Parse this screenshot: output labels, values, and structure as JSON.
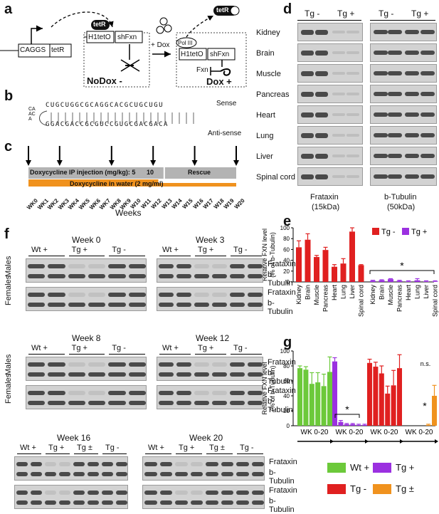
{
  "panels": {
    "a": {
      "letter": "a",
      "promoter": "CAGGS",
      "gene": "tetR",
      "repressor": "tetR",
      "operator": "H1tetO",
      "hairpin": "shFxn",
      "dox_add": "+ Dox",
      "polymerase": "Pol III",
      "released": "tetR",
      "target": "Fxn",
      "nodox_label": "NoDox -",
      "dox_label": "Dox +"
    },
    "b": {
      "letter": "b",
      "sense": "Sense",
      "antisense": "Anti-sense",
      "hairpin_top": "CUGCUGGCGCAGGCACGCUGCUGU",
      "hairpin_bottom": "GGACGACCGCGUCCGUGCGACGACA",
      "loop": "CAACA"
    },
    "c": {
      "letter": "c",
      "ip_label": "Doxycycline IP injection (mg/kg): 5",
      "ip_value2": "10",
      "rescue": "Rescue",
      "water_label": "Doxycycline in water (2 mg/ml)",
      "weeks": [
        "WK0",
        "WK1",
        "WK2",
        "WK3",
        "WK4",
        "WK5",
        "WK6",
        "WK7",
        "WK8",
        "WK9",
        "W10",
        "W11",
        "W12",
        "W13",
        "W14",
        "W15",
        "W16",
        "W17",
        "W18",
        "W19",
        "W20"
      ],
      "xlabel": "Weeks",
      "colors": {
        "ip": "#b3b3b3",
        "water": "#f0921e"
      }
    },
    "d": {
      "letter": "d",
      "groups": [
        "Tg -",
        "Tg +",
        "Tg -",
        "Tg +"
      ],
      "tissues": [
        "Kidney",
        "Brain",
        "Muscle",
        "Pancreas",
        "Heart",
        "Lung",
        "Liver",
        "Spinal cord"
      ],
      "protein1": "Frataxin",
      "size1": "(15kDa)",
      "protein2": "b-Tubulin",
      "size2": "(50kDa)"
    },
    "e": {
      "letter": "e",
      "legend": [
        "Tg -",
        "Tg +"
      ],
      "star": "*"
    },
    "f": {
      "letter": "f",
      "blocks": [
        {
          "week": "Week 0",
          "groups": [
            "Wt +",
            "Tg +",
            "Tg -"
          ]
        },
        {
          "week": "Week 3",
          "groups": [
            "Wt +",
            "Tg +",
            "Tg -"
          ]
        },
        {
          "week": "Week 8",
          "groups": [
            "Wt +",
            "Tg +",
            "Tg -"
          ]
        },
        {
          "week": "Week 12",
          "groups": [
            "Wt +",
            "Tg +",
            "Tg -"
          ]
        },
        {
          "week": "Week 16",
          "groups": [
            "Wt +",
            "Tg +",
            "Tg ±",
            "Tg -"
          ]
        },
        {
          "week": "Week 20",
          "groups": [
            "Wt +",
            "Tg +",
            "Tg ±",
            "Tg -"
          ]
        }
      ],
      "males": "Males",
      "females": "Females",
      "frataxin": "Frataxin",
      "tubulin": "b-Tubulin"
    },
    "g": {
      "letter": "g",
      "group_label": "WK 0-20",
      "star": "*",
      "ns": "n.s.",
      "legend": [
        "Wt +",
        "Tg -",
        "Tg +",
        "Tg ±"
      ]
    }
  },
  "chart_data": [
    {
      "type": "bar",
      "panel": "e",
      "ylabel": "Relative FXN level (% of b-Tubulin)",
      "ylim": [
        0,
        100
      ],
      "yticks": [
        0,
        20,
        40,
        60,
        80,
        100
      ],
      "categories": [
        "Kidney",
        "Brain",
        "Muscle",
        "Pancreas",
        "Heart",
        "Lung",
        "Liver",
        "Spinal cord"
      ],
      "series": [
        {
          "name": "Tg -",
          "color": "#e02020",
          "values": [
            64,
            78,
            46,
            59,
            28,
            34,
            93,
            31
          ],
          "errors": [
            12,
            11,
            3,
            5,
            4,
            9,
            7,
            1
          ]
        },
        {
          "name": "Tg +",
          "color": "#9b30e0",
          "values": [
            2,
            3,
            5,
            2,
            1,
            3,
            1,
            1
          ],
          "errors": [
            1,
            1,
            1,
            1,
            1,
            3,
            1,
            1
          ]
        }
      ]
    },
    {
      "type": "bar",
      "panel": "g",
      "ylabel": "Relative FXN level (% of b-Tubulin)",
      "ylim": [
        0,
        100
      ],
      "yticks": [
        0,
        20,
        40,
        60,
        80,
        100
      ],
      "groups": [
        {
          "name": "Wt +",
          "color": "#6cc93a",
          "values": [
            77,
            75,
            56,
            58,
            53,
            72
          ],
          "errors": [
            3,
            4,
            15,
            13,
            16,
            20
          ]
        },
        {
          "name": "Tg +",
          "color": "#9b30e0",
          "values": [
            86,
            5,
            2,
            2,
            1,
            1
          ],
          "errors": [
            5,
            2,
            1,
            1,
            1,
            1
          ]
        },
        {
          "name": "Tg -",
          "color": "#e02020",
          "values": [
            84,
            79,
            70,
            43,
            54,
            77
          ],
          "errors": [
            5,
            6,
            10,
            10,
            20,
            18
          ]
        },
        {
          "name": "Tg ±",
          "color": "#f0921e",
          "values": [
            0,
            0,
            0,
            0,
            1,
            40
          ],
          "errors": [
            0,
            0,
            0,
            0,
            1,
            14
          ]
        }
      ]
    }
  ]
}
